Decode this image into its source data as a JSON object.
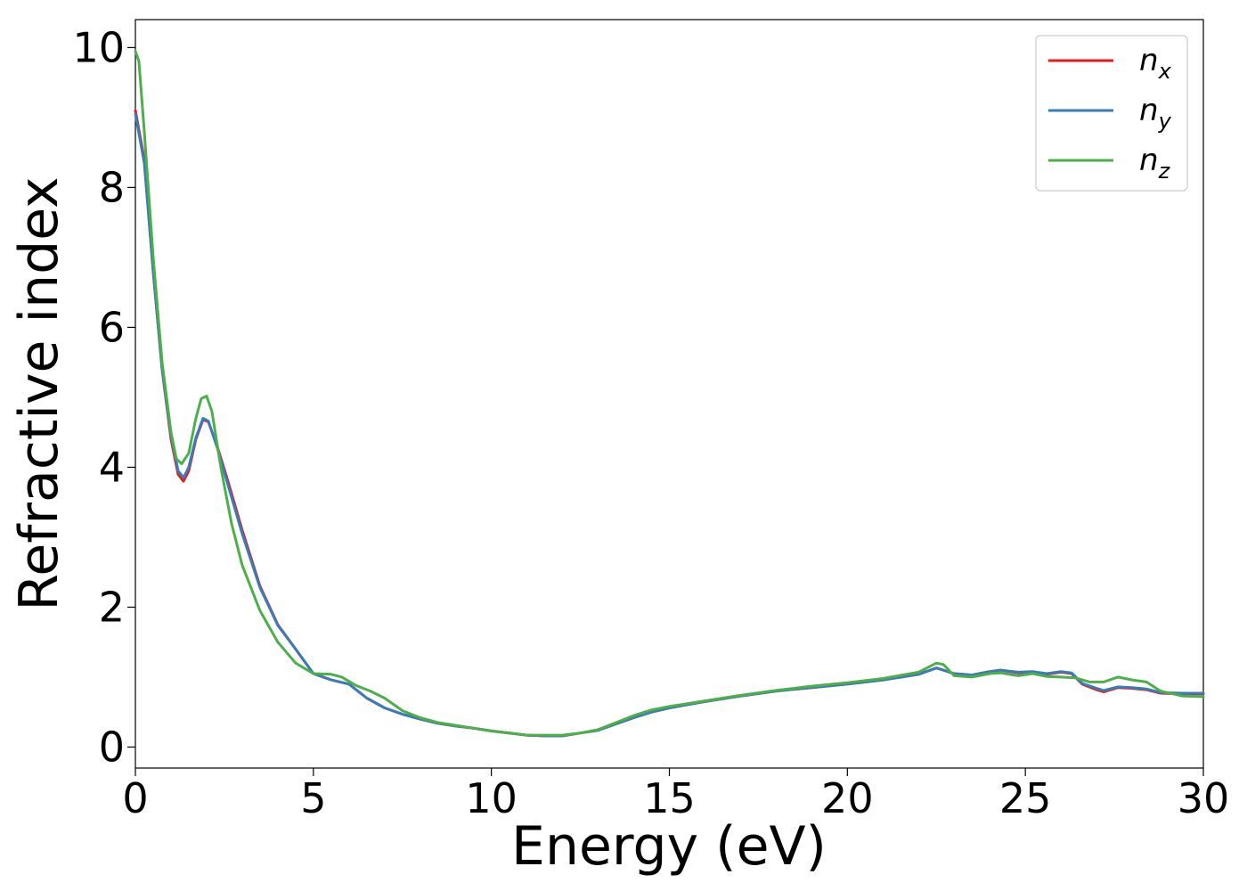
{
  "chart_data": {
    "type": "line",
    "xlabel": "Energy (eV)",
    "ylabel": "Refractive index",
    "xlim": [
      0,
      30
    ],
    "ylim": [
      -0.3,
      10.4
    ],
    "xticks": [
      0,
      5,
      10,
      15,
      20,
      25,
      30
    ],
    "yticks": [
      0,
      2,
      4,
      6,
      8,
      10
    ],
    "grid": false,
    "legend_position": "top-right",
    "series": [
      {
        "name": "n",
        "subscript": "x",
        "color": "#e41a1c",
        "points": [
          [
            0.0,
            9.1
          ],
          [
            0.25,
            8.4
          ],
          [
            0.5,
            6.8
          ],
          [
            0.75,
            5.4
          ],
          [
            1.0,
            4.4
          ],
          [
            1.2,
            3.9
          ],
          [
            1.35,
            3.8
          ],
          [
            1.5,
            3.95
          ],
          [
            1.7,
            4.4
          ],
          [
            1.9,
            4.68
          ],
          [
            2.05,
            4.65
          ],
          [
            2.3,
            4.3
          ],
          [
            2.6,
            3.8
          ],
          [
            3.0,
            3.1
          ],
          [
            3.5,
            2.3
          ],
          [
            4.0,
            1.75
          ],
          [
            4.5,
            1.4
          ],
          [
            5.0,
            1.05
          ],
          [
            5.5,
            0.96
          ],
          [
            6.0,
            0.9
          ],
          [
            6.5,
            0.7
          ],
          [
            7.0,
            0.56
          ],
          [
            7.5,
            0.47
          ],
          [
            8.0,
            0.4
          ],
          [
            8.5,
            0.34
          ],
          [
            9.0,
            0.3
          ],
          [
            9.5,
            0.27
          ],
          [
            10.0,
            0.23
          ],
          [
            10.5,
            0.2
          ],
          [
            11.0,
            0.17
          ],
          [
            11.5,
            0.16
          ],
          [
            12.0,
            0.16
          ],
          [
            12.5,
            0.2
          ],
          [
            13.0,
            0.24
          ],
          [
            13.5,
            0.33
          ],
          [
            14.0,
            0.42
          ],
          [
            14.5,
            0.5
          ],
          [
            15.0,
            0.56
          ],
          [
            16.0,
            0.65
          ],
          [
            17.0,
            0.73
          ],
          [
            18.0,
            0.8
          ],
          [
            19.0,
            0.85
          ],
          [
            20.0,
            0.9
          ],
          [
            21.0,
            0.96
          ],
          [
            22.0,
            1.04
          ],
          [
            22.5,
            1.13
          ],
          [
            23.0,
            1.05
          ],
          [
            23.5,
            1.03
          ],
          [
            24.0,
            1.08
          ],
          [
            24.3,
            1.1
          ],
          [
            24.8,
            1.06
          ],
          [
            25.2,
            1.07
          ],
          [
            25.6,
            1.04
          ],
          [
            26.0,
            1.07
          ],
          [
            26.3,
            1.05
          ],
          [
            26.6,
            0.9
          ],
          [
            27.0,
            0.82
          ],
          [
            27.2,
            0.79
          ],
          [
            27.6,
            0.85
          ],
          [
            28.0,
            0.84
          ],
          [
            28.4,
            0.82
          ],
          [
            28.8,
            0.77
          ],
          [
            29.4,
            0.76
          ],
          [
            30.0,
            0.76
          ]
        ]
      },
      {
        "name": "n",
        "subscript": "y",
        "color": "#377eb8",
        "points": [
          [
            0.0,
            9.05
          ],
          [
            0.25,
            8.35
          ],
          [
            0.5,
            6.8
          ],
          [
            0.75,
            5.4
          ],
          [
            1.0,
            4.45
          ],
          [
            1.2,
            3.95
          ],
          [
            1.35,
            3.85
          ],
          [
            1.5,
            4.0
          ],
          [
            1.7,
            4.42
          ],
          [
            1.9,
            4.7
          ],
          [
            2.05,
            4.66
          ],
          [
            2.3,
            4.28
          ],
          [
            2.6,
            3.75
          ],
          [
            3.0,
            3.05
          ],
          [
            3.5,
            2.28
          ],
          [
            4.0,
            1.74
          ],
          [
            4.5,
            1.4
          ],
          [
            5.0,
            1.05
          ],
          [
            5.5,
            0.96
          ],
          [
            6.0,
            0.9
          ],
          [
            6.5,
            0.7
          ],
          [
            7.0,
            0.56
          ],
          [
            7.5,
            0.47
          ],
          [
            8.0,
            0.4
          ],
          [
            8.5,
            0.34
          ],
          [
            9.0,
            0.3
          ],
          [
            9.5,
            0.27
          ],
          [
            10.0,
            0.23
          ],
          [
            10.5,
            0.2
          ],
          [
            11.0,
            0.17
          ],
          [
            11.5,
            0.16
          ],
          [
            12.0,
            0.16
          ],
          [
            12.5,
            0.2
          ],
          [
            13.0,
            0.24
          ],
          [
            13.5,
            0.33
          ],
          [
            14.0,
            0.42
          ],
          [
            14.5,
            0.5
          ],
          [
            15.0,
            0.56
          ],
          [
            16.0,
            0.65
          ],
          [
            17.0,
            0.73
          ],
          [
            18.0,
            0.8
          ],
          [
            19.0,
            0.85
          ],
          [
            20.0,
            0.9
          ],
          [
            21.0,
            0.96
          ],
          [
            22.0,
            1.04
          ],
          [
            22.5,
            1.13
          ],
          [
            23.0,
            1.05
          ],
          [
            23.5,
            1.03
          ],
          [
            24.0,
            1.08
          ],
          [
            24.3,
            1.1
          ],
          [
            24.8,
            1.07
          ],
          [
            25.2,
            1.08
          ],
          [
            25.6,
            1.05
          ],
          [
            26.0,
            1.08
          ],
          [
            26.3,
            1.06
          ],
          [
            26.6,
            0.91
          ],
          [
            27.0,
            0.84
          ],
          [
            27.2,
            0.81
          ],
          [
            27.6,
            0.86
          ],
          [
            28.0,
            0.85
          ],
          [
            28.4,
            0.83
          ],
          [
            28.8,
            0.78
          ],
          [
            29.4,
            0.77
          ],
          [
            30.0,
            0.77
          ]
        ]
      },
      {
        "name": "n",
        "subscript": "z",
        "color": "#4daf4a",
        "points": [
          [
            0.0,
            9.95
          ],
          [
            0.1,
            9.8
          ],
          [
            0.25,
            8.8
          ],
          [
            0.5,
            7.0
          ],
          [
            0.75,
            5.5
          ],
          [
            1.0,
            4.5
          ],
          [
            1.15,
            4.12
          ],
          [
            1.3,
            4.05
          ],
          [
            1.5,
            4.2
          ],
          [
            1.7,
            4.7
          ],
          [
            1.85,
            4.98
          ],
          [
            2.0,
            5.02
          ],
          [
            2.15,
            4.8
          ],
          [
            2.4,
            4.0
          ],
          [
            2.7,
            3.2
          ],
          [
            3.0,
            2.6
          ],
          [
            3.5,
            1.95
          ],
          [
            4.0,
            1.5
          ],
          [
            4.5,
            1.2
          ],
          [
            5.0,
            1.05
          ],
          [
            5.5,
            1.04
          ],
          [
            5.8,
            1.0
          ],
          [
            6.2,
            0.88
          ],
          [
            6.6,
            0.8
          ],
          [
            7.0,
            0.7
          ],
          [
            7.5,
            0.52
          ],
          [
            8.0,
            0.42
          ],
          [
            8.5,
            0.35
          ],
          [
            9.0,
            0.31
          ],
          [
            9.5,
            0.27
          ],
          [
            10.0,
            0.23
          ],
          [
            10.5,
            0.2
          ],
          [
            11.0,
            0.17
          ],
          [
            11.5,
            0.17
          ],
          [
            12.0,
            0.17
          ],
          [
            12.5,
            0.2
          ],
          [
            13.0,
            0.25
          ],
          [
            13.5,
            0.35
          ],
          [
            14.0,
            0.45
          ],
          [
            14.5,
            0.53
          ],
          [
            15.0,
            0.58
          ],
          [
            16.0,
            0.66
          ],
          [
            17.0,
            0.74
          ],
          [
            18.0,
            0.81
          ],
          [
            19.0,
            0.87
          ],
          [
            20.0,
            0.92
          ],
          [
            21.0,
            0.98
          ],
          [
            22.0,
            1.07
          ],
          [
            22.5,
            1.2
          ],
          [
            22.7,
            1.18
          ],
          [
            23.0,
            1.02
          ],
          [
            23.5,
            1.0
          ],
          [
            24.0,
            1.05
          ],
          [
            24.3,
            1.06
          ],
          [
            24.8,
            1.02
          ],
          [
            25.2,
            1.05
          ],
          [
            25.6,
            1.01
          ],
          [
            26.0,
            1.0
          ],
          [
            26.4,
            0.99
          ],
          [
            26.8,
            0.93
          ],
          [
            27.2,
            0.93
          ],
          [
            27.6,
            1.0
          ],
          [
            28.0,
            0.96
          ],
          [
            28.4,
            0.93
          ],
          [
            28.8,
            0.8
          ],
          [
            29.4,
            0.73
          ],
          [
            30.0,
            0.72
          ]
        ]
      }
    ]
  }
}
